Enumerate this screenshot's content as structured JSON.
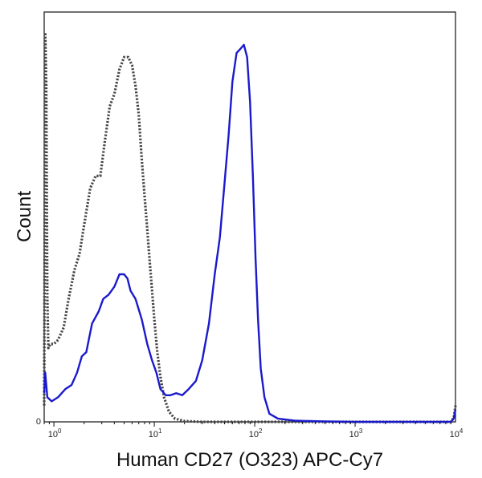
{
  "chart_data": {
    "type": "line",
    "title": "",
    "xlabel": "Human CD27 (O323) APC-Cy7",
    "ylabel": "Count",
    "x_scale": "log",
    "xlim": [
      0.8,
      10000
    ],
    "ylim": [
      0,
      1
    ],
    "y_ticks": [
      {
        "value": 0,
        "label": "0"
      }
    ],
    "x_ticks": [
      {
        "value": 1,
        "base": "10",
        "exp": "0"
      },
      {
        "value": 10,
        "base": "10",
        "exp": "1"
      },
      {
        "value": 100,
        "base": "10",
        "exp": "2"
      },
      {
        "value": 1000,
        "base": "10",
        "exp": "3"
      },
      {
        "value": 10000,
        "base": "10",
        "exp": "4"
      }
    ],
    "grid": false,
    "legend": "none",
    "series": [
      {
        "style": "dotted",
        "color": "#444444",
        "points": [
          [
            0.8,
            0.04
          ],
          [
            0.82,
            0.95
          ],
          [
            0.84,
            0.82
          ],
          [
            0.86,
            0.3
          ],
          [
            0.88,
            0.18
          ],
          [
            0.92,
            0.19
          ],
          [
            1.0,
            0.19
          ],
          [
            1.1,
            0.2
          ],
          [
            1.25,
            0.23
          ],
          [
            1.4,
            0.3
          ],
          [
            1.6,
            0.37
          ],
          [
            1.8,
            0.41
          ],
          [
            2.0,
            0.48
          ],
          [
            2.3,
            0.57
          ],
          [
            2.6,
            0.6
          ],
          [
            2.9,
            0.6
          ],
          [
            3.2,
            0.68
          ],
          [
            3.6,
            0.77
          ],
          [
            4.0,
            0.8
          ],
          [
            4.5,
            0.86
          ],
          [
            5.0,
            0.89
          ],
          [
            5.5,
            0.89
          ],
          [
            6.0,
            0.87
          ],
          [
            6.5,
            0.82
          ],
          [
            7.0,
            0.75
          ],
          [
            7.5,
            0.64
          ],
          [
            8.0,
            0.55
          ],
          [
            8.5,
            0.47
          ],
          [
            9.0,
            0.39
          ],
          [
            9.5,
            0.32
          ],
          [
            10.0,
            0.25
          ],
          [
            10.7,
            0.17
          ],
          [
            11.5,
            0.11
          ],
          [
            12.5,
            0.06
          ],
          [
            14.0,
            0.025
          ],
          [
            16.0,
            0.008
          ],
          [
            20.0,
            0.002
          ],
          [
            30.0,
            0.0
          ],
          [
            1000.0,
            0.0
          ],
          [
            9000.0,
            0.0
          ],
          [
            9600.0,
            0.01
          ],
          [
            10000.0,
            0.04
          ]
        ]
      },
      {
        "style": "solid",
        "color": "#1a1acc",
        "points": [
          [
            0.8,
            0.07
          ],
          [
            0.82,
            0.12
          ],
          [
            0.86,
            0.06
          ],
          [
            0.95,
            0.05
          ],
          [
            1.1,
            0.06
          ],
          [
            1.3,
            0.08
          ],
          [
            1.5,
            0.09
          ],
          [
            1.7,
            0.12
          ],
          [
            1.9,
            0.16
          ],
          [
            2.1,
            0.17
          ],
          [
            2.4,
            0.24
          ],
          [
            2.8,
            0.27
          ],
          [
            3.1,
            0.3
          ],
          [
            3.5,
            0.31
          ],
          [
            4.0,
            0.33
          ],
          [
            4.5,
            0.36
          ],
          [
            5.0,
            0.36
          ],
          [
            5.4,
            0.35
          ],
          [
            5.8,
            0.32
          ],
          [
            6.5,
            0.3
          ],
          [
            7.5,
            0.25
          ],
          [
            8.5,
            0.19
          ],
          [
            9.5,
            0.15
          ],
          [
            10.5,
            0.12
          ],
          [
            11.5,
            0.08
          ],
          [
            13.0,
            0.065
          ],
          [
            14.5,
            0.065
          ],
          [
            16.5,
            0.07
          ],
          [
            19.0,
            0.065
          ],
          [
            22.0,
            0.08
          ],
          [
            26.0,
            0.1
          ],
          [
            30.0,
            0.15
          ],
          [
            35.0,
            0.24
          ],
          [
            40.0,
            0.36
          ],
          [
            45.0,
            0.45
          ],
          [
            50.0,
            0.58
          ],
          [
            55.0,
            0.7
          ],
          [
            60.0,
            0.83
          ],
          [
            66.0,
            0.9
          ],
          [
            72.0,
            0.91
          ],
          [
            78.0,
            0.92
          ],
          [
            84.0,
            0.89
          ],
          [
            90.0,
            0.78
          ],
          [
            96.0,
            0.6
          ],
          [
            102.0,
            0.4
          ],
          [
            108.0,
            0.25
          ],
          [
            115.0,
            0.13
          ],
          [
            125.0,
            0.06
          ],
          [
            140.0,
            0.02
          ],
          [
            170.0,
            0.008
          ],
          [
            250.0,
            0.003
          ],
          [
            500.0,
            0.001
          ],
          [
            1000.0,
            0.0
          ],
          [
            9000.0,
            0.0
          ],
          [
            9600.0,
            0.008
          ],
          [
            10000.0,
            0.03
          ]
        ]
      }
    ]
  }
}
